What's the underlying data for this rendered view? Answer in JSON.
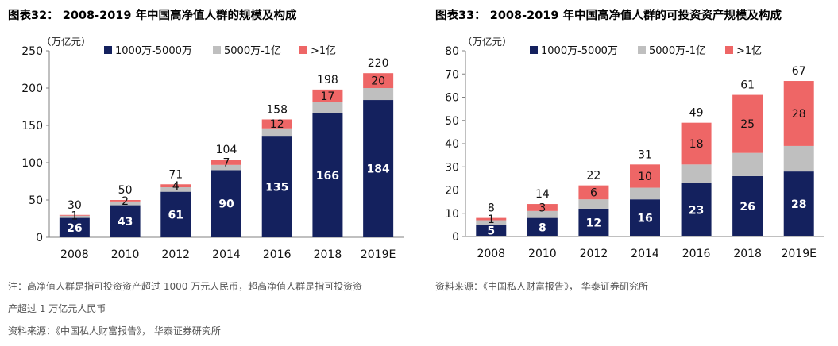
{
  "left": {
    "title": "图表32： 2008-2019 年中国高净值人群的规模及构成",
    "unit": "（万亿元）",
    "note_lines": [
      "注：高净值人群是指可投资资产超过 1000 万元人民币，超高净值人群是指可投资资",
      "产超过 1 万亿元人民币"
    ],
    "source": "资料来源：《中国私人财富报告》， 华泰证券研究所",
    "chart_data": {
      "type": "bar",
      "stacked": true,
      "categories": [
        "2008",
        "2010",
        "2012",
        "2014",
        "2016",
        "2018",
        "2019E"
      ],
      "series": [
        {
          "name": "1000万-5000万",
          "color": "#14215e",
          "values": [
            26,
            43,
            61,
            90,
            135,
            166,
            184
          ]
        },
        {
          "name": "5000万-1亿",
          "color": "#bfbfbf",
          "values": [
            3,
            5,
            6,
            7,
            11,
            15,
            16
          ]
        },
        {
          "name": ">1亿",
          "color": "#ee6666",
          "values": [
            1,
            2,
            4,
            7,
            12,
            17,
            20
          ]
        }
      ],
      "segment_labels": [
        [
          "26",
          "43",
          "61",
          "90",
          "135",
          "166",
          "184"
        ],
        [
          "",
          "",
          "",
          "",
          "",
          "",
          ""
        ],
        [
          "1",
          "2",
          "4",
          "7",
          "12",
          "17",
          "20"
        ]
      ],
      "totals": [
        30,
        50,
        71,
        104,
        158,
        198,
        220
      ],
      "ylim": [
        0,
        250
      ],
      "yticks": [
        0,
        50,
        100,
        150,
        200,
        250
      ],
      "grid": false,
      "legend_position": "top"
    }
  },
  "right": {
    "title": "图表33： 2008-2019 年中国高净值人群的可投资资产规模及构成",
    "unit": "（万亿元）",
    "source": "资料来源：《中国私人财富报告》， 华泰证券研究所",
    "chart_data": {
      "type": "bar",
      "stacked": true,
      "categories": [
        "2008",
        "2010",
        "2012",
        "2014",
        "2016",
        "2018",
        "2019E"
      ],
      "series": [
        {
          "name": "1000万-5000万",
          "color": "#14215e",
          "values": [
            5,
            8,
            12,
            16,
            23,
            26,
            28
          ]
        },
        {
          "name": "5000万-1亿",
          "color": "#bfbfbf",
          "values": [
            2,
            3,
            4,
            5,
            8,
            10,
            11
          ]
        },
        {
          "name": ">1亿",
          "color": "#ee6666",
          "values": [
            1,
            3,
            6,
            10,
            18,
            25,
            28
          ]
        }
      ],
      "segment_labels": [
        [
          "5",
          "8",
          "12",
          "16",
          "23",
          "26",
          "28"
        ],
        [
          "",
          "",
          "",
          "",
          "",
          "",
          ""
        ],
        [
          "1",
          "3",
          "6",
          "10",
          "18",
          "25",
          "28"
        ]
      ],
      "totals": [
        8,
        14,
        22,
        31,
        49,
        61,
        67
      ],
      "ylim": [
        0,
        80
      ],
      "yticks": [
        0,
        10,
        20,
        30,
        40,
        50,
        60,
        70,
        80
      ],
      "grid": false,
      "legend_position": "top"
    }
  }
}
